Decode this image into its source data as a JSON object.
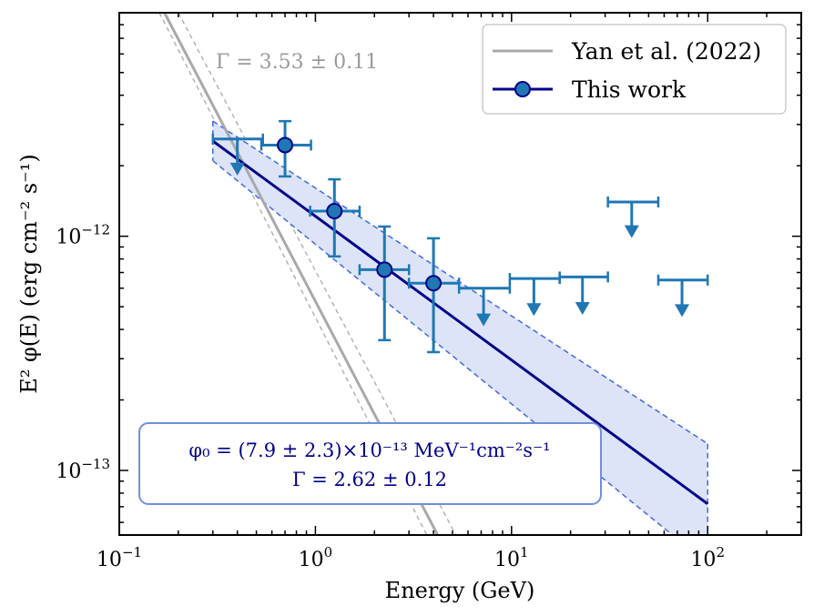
{
  "chart_data": {
    "type": "scatter",
    "xscale": "log",
    "yscale": "log",
    "xlim": [
      0.1,
      300
    ],
    "ylim": [
      5.3e-14,
      9e-12
    ],
    "xlabel": "Energy (GeV)",
    "ylabel": "E² φ(E) (erg cm⁻² s⁻¹)",
    "xticks": [
      {
        "value": 0.1,
        "label_base": "10",
        "label_exp": "−1"
      },
      {
        "value": 1,
        "label_base": "10",
        "label_exp": "0"
      },
      {
        "value": 10,
        "label_base": "10",
        "label_exp": "1"
      },
      {
        "value": 100,
        "label_base": "10",
        "label_exp": "2"
      }
    ],
    "yticks": [
      {
        "value": 1e-13,
        "label_base": "10",
        "label_exp": "−13"
      },
      {
        "value": 1e-12,
        "label_base": "10",
        "label_exp": "−12"
      }
    ],
    "legend": {
      "position": "top-right",
      "entries": [
        {
          "label": "Yan et al. (2022)",
          "color": "#a9a9a9",
          "marker": "line"
        },
        {
          "label": "This work",
          "color": "#00008b",
          "marker": "line-circle"
        }
      ]
    },
    "annotations": {
      "yan_gamma": "Γ = 3.53 ± 0.11",
      "fit_line1": "φ₀ = (7.9 ± 2.3)×10⁻¹³ MeV⁻¹cm⁻²s⁻¹",
      "fit_line2": "Γ = 2.62 ± 0.12"
    },
    "colors": {
      "points": "#1f77b4",
      "point_edge": "#00008b",
      "fit_line": "#00008b",
      "band_fill": "#dde4f8",
      "band_edge": "#4169e1",
      "yan": "#a9a9a9",
      "fit_box_edge": "#6f8fe0"
    },
    "series": [
      {
        "name": "This work",
        "kind": "power_law_fit",
        "x_range": [
          0.3,
          100
        ],
        "y_at_x_range": [
          2.55e-12,
          7.2e-14
        ],
        "band_upper": [
          3.1e-12,
          1.3e-13
        ],
        "band_lower": [
          2.1e-12,
          4e-14
        ]
      },
      {
        "name": "Yan et al. (2022)",
        "kind": "power_law",
        "line": [
          [
            0.17,
            9e-12
          ],
          [
            4.2,
            5.3e-14
          ]
        ],
        "band_upper": [
          [
            0.2,
            9e-12
          ],
          [
            5.2,
            5.3e-14
          ]
        ],
        "band_lower": [
          [
            0.16,
            9e-12
          ],
          [
            3.7,
            5.3e-14
          ]
        ]
      },
      {
        "name": "data points",
        "kind": "points",
        "points": [
          {
            "x": 0.7,
            "y": 2.45e-12,
            "xerr": [
              0.53,
              0.95
            ],
            "yerr": [
              1.8e-12,
              3.1e-12
            ]
          },
          {
            "x": 1.25,
            "y": 1.28e-12,
            "xerr": [
              0.94,
              1.68
            ],
            "yerr": [
              8.2e-13,
              1.75e-12
            ]
          },
          {
            "x": 2.25,
            "y": 7.2e-13,
            "xerr": [
              1.68,
              3.0
            ],
            "yerr": [
              3.6e-13,
              1.1e-12
            ]
          },
          {
            "x": 4.0,
            "y": 6.3e-13,
            "xerr": [
              3.0,
              5.4
            ],
            "yerr": [
              3.2e-13,
              9.8e-13
            ]
          }
        ]
      },
      {
        "name": "upper limits",
        "kind": "upper_limits",
        "points": [
          {
            "x": 0.4,
            "y": 2.6e-12,
            "xerr": [
              0.3,
              0.54
            ],
            "arrow_to": 1.85e-12
          },
          {
            "x": 7.2,
            "y": 6e-13,
            "xerr": [
              5.4,
              9.8
            ],
            "arrow_to": 4.2e-13
          },
          {
            "x": 13,
            "y": 6.6e-13,
            "xerr": [
              9.8,
              17.6
            ],
            "arrow_to": 4.65e-13
          },
          {
            "x": 23,
            "y": 6.7e-13,
            "xerr": [
              17.6,
              31
            ],
            "arrow_to": 4.7e-13
          },
          {
            "x": 41,
            "y": 1.4e-12,
            "xerr": [
              31,
              56
            ],
            "arrow_to": 1e-12
          },
          {
            "x": 74,
            "y": 6.5e-13,
            "xerr": [
              56,
              100
            ],
            "arrow_to": 4.6e-13
          }
        ]
      }
    ]
  }
}
